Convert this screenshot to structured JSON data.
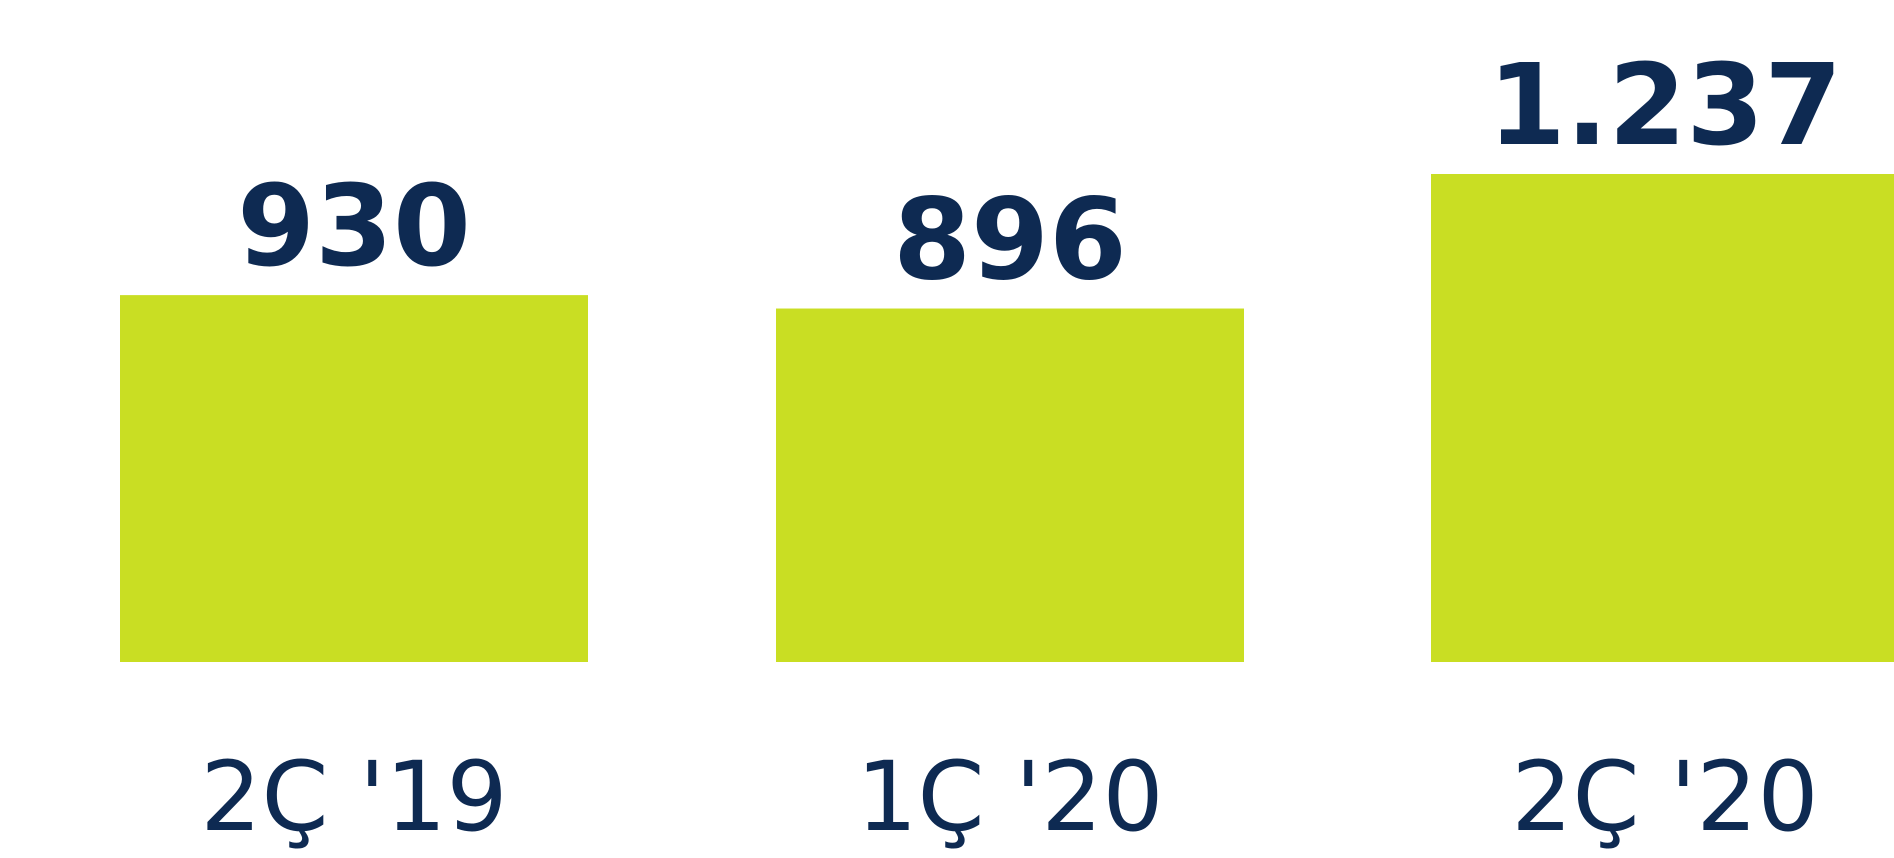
{
  "colors": {
    "bar": "#c9de23",
    "text": "#0e2a52",
    "background": "#ffffff"
  },
  "chart_data": {
    "type": "bar",
    "categories": [
      "2Ç '19",
      "1Ç '20",
      "2Ç '20"
    ],
    "values": [
      930,
      896,
      1237
    ],
    "value_labels": [
      "930",
      "896",
      "1.237"
    ],
    "title": "",
    "xlabel": "",
    "ylabel": "",
    "ylim": [
      0,
      1237
    ],
    "grid": false,
    "legend": "none"
  }
}
